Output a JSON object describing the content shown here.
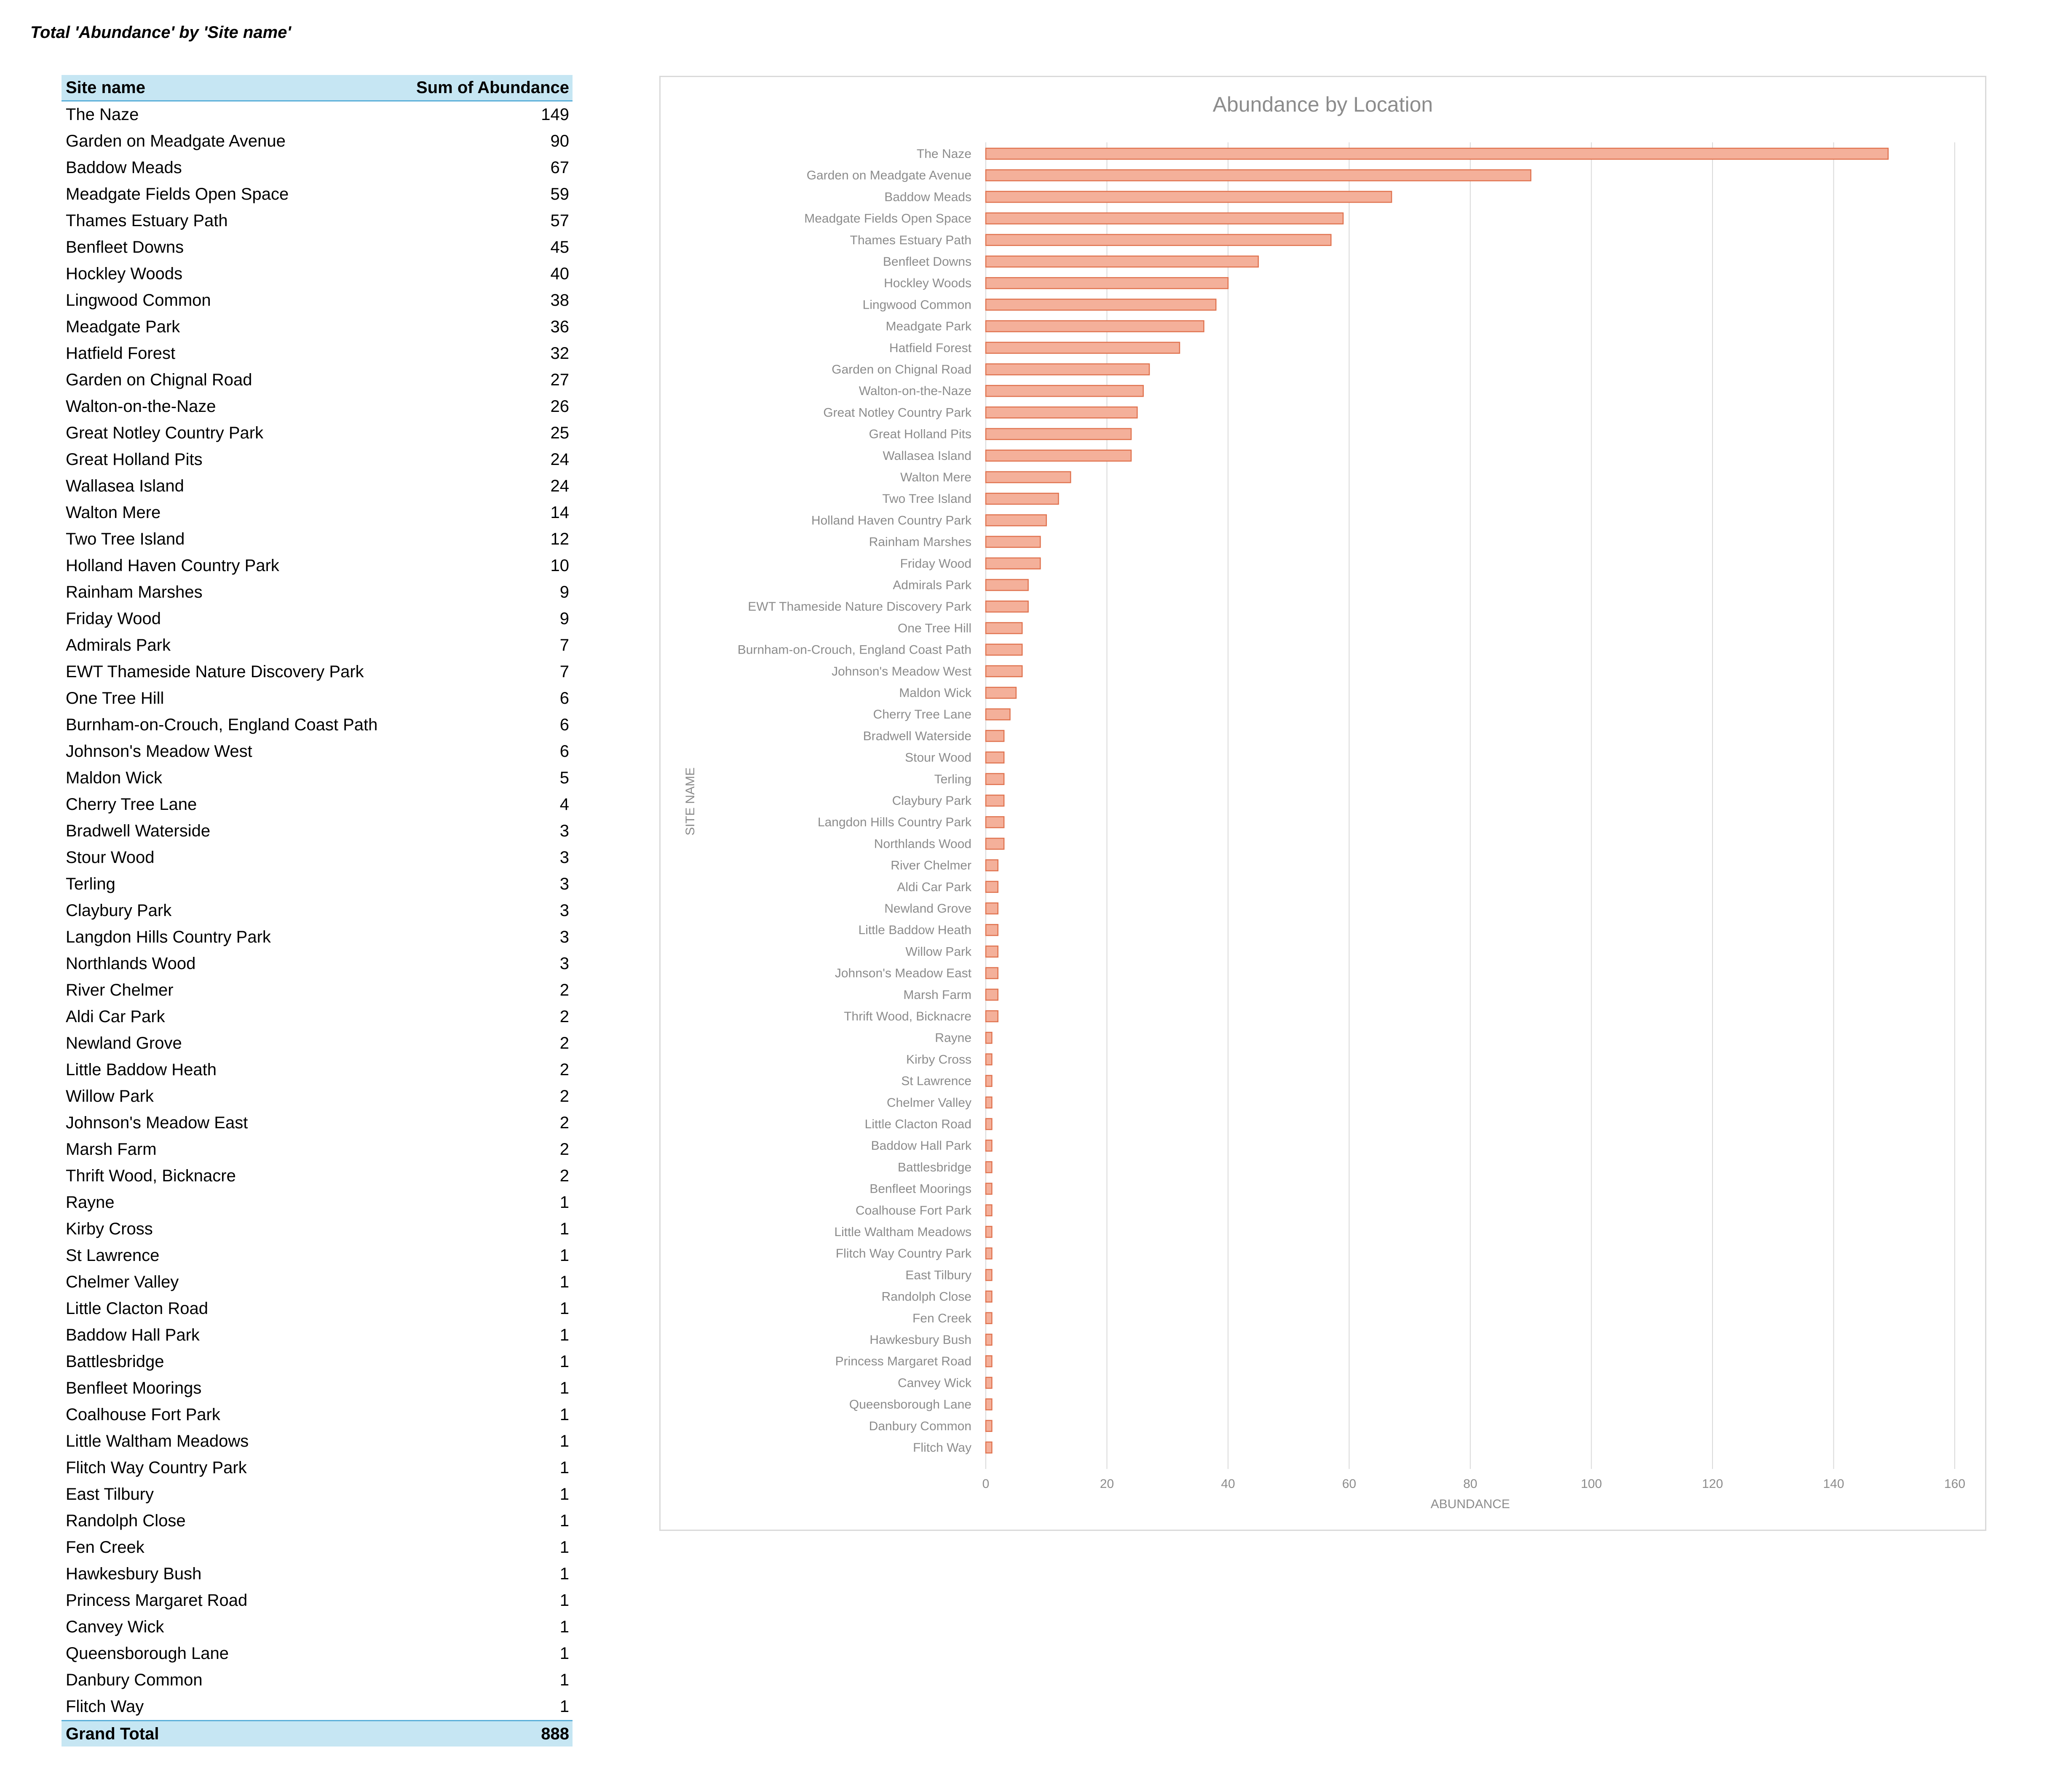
{
  "page_title": "Total 'Abundance' by 'Site name'",
  "table": {
    "header_site": "Site name",
    "header_value": "Sum of Abundance",
    "total_label": "Grand Total",
    "total_value": "888"
  },
  "chart_data": {
    "type": "bar",
    "orientation": "horizontal",
    "title": "Abundance by Location",
    "xlabel": "ABUNDANCE",
    "ylabel": "SITE NAME",
    "xlim": [
      0,
      160
    ],
    "xticks": [
      0,
      20,
      40,
      60,
      80,
      100,
      120,
      140,
      160
    ],
    "grid": true,
    "bar_color": "#f4b09a",
    "bar_edge_color": "#e0724e",
    "categories": [
      "The Naze",
      "Garden on Meadgate Avenue",
      "Baddow Meads",
      "Meadgate Fields Open Space",
      "Thames Estuary Path",
      "Benfleet Downs",
      "Hockley Woods",
      "Lingwood Common",
      "Meadgate Park",
      "Hatfield Forest",
      "Garden on Chignal Road",
      "Walton-on-the-Naze",
      "Great Notley Country Park",
      "Great Holland Pits",
      "Wallasea Island",
      "Walton Mere",
      "Two Tree Island",
      "Holland Haven Country Park",
      "Rainham Marshes",
      "Friday Wood",
      "Admirals Park",
      "EWT Thameside Nature Discovery Park",
      "One Tree Hill",
      "Burnham-on-Crouch, England Coast Path",
      "Johnson's Meadow West",
      "Maldon Wick",
      "Cherry Tree Lane",
      "Bradwell Waterside",
      "Stour Wood",
      "Terling",
      "Claybury Park",
      "Langdon Hills Country Park",
      "Northlands Wood",
      "River Chelmer",
      "Aldi Car Park",
      "Newland Grove",
      "Little Baddow Heath",
      "Willow Park",
      "Johnson's Meadow East",
      "Marsh Farm",
      "Thrift Wood, Bicknacre",
      "Rayne",
      "Kirby Cross",
      "St Lawrence",
      "Chelmer Valley",
      "Little Clacton Road",
      "Baddow Hall Park",
      "Battlesbridge",
      "Benfleet Moorings",
      "Coalhouse Fort Park",
      "Little Waltham Meadows",
      "Flitch Way Country Park",
      "East Tilbury",
      "Randolph Close",
      "Fen Creek",
      "Hawkesbury Bush",
      "Princess Margaret Road",
      "Canvey Wick",
      "Queensborough Lane",
      "Danbury Common",
      "Flitch Way"
    ],
    "values": [
      149,
      90,
      67,
      59,
      57,
      45,
      40,
      38,
      36,
      32,
      27,
      26,
      25,
      24,
      24,
      14,
      12,
      10,
      9,
      9,
      7,
      7,
      6,
      6,
      6,
      5,
      4,
      3,
      3,
      3,
      3,
      3,
      3,
      2,
      2,
      2,
      2,
      2,
      2,
      2,
      2,
      1,
      1,
      1,
      1,
      1,
      1,
      1,
      1,
      1,
      1,
      1,
      1,
      1,
      1,
      1,
      1,
      1,
      1,
      1,
      1
    ]
  }
}
